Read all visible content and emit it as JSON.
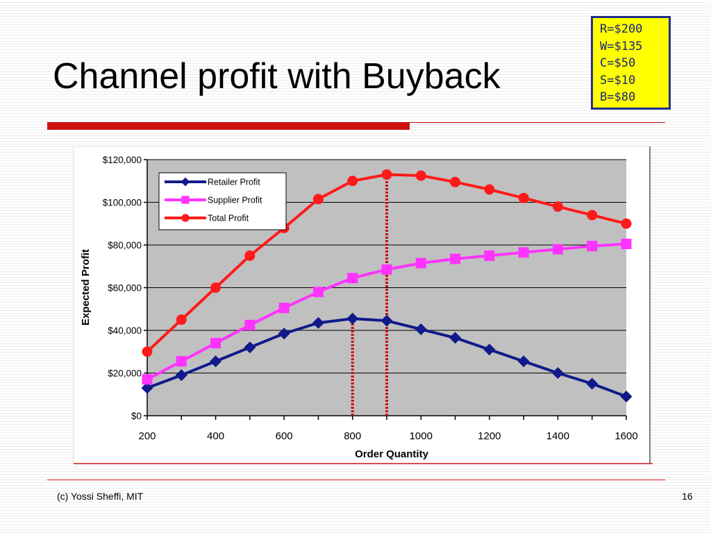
{
  "slide": {
    "title": "Channel profit with Buyback",
    "footer": "(c) Yossi Sheffi, MIT",
    "page_number": "16"
  },
  "parameters": [
    "R=$200",
    "W=$135",
    "C=$50",
    "S=$10",
    "B=$80"
  ],
  "colors": {
    "accent": "#cc1111",
    "param_bg": "#ffff00",
    "param_text": "#1a237e",
    "plot_bg": "#c0c0c0",
    "retailer": "#101a8a",
    "supplier": "#ff33ff",
    "total": "#ff1a1a",
    "marker_line": "#cc1111"
  },
  "chart_data": {
    "type": "line",
    "xlabel": "Order Quantity",
    "ylabel": "Expected Profit",
    "x": [
      200,
      300,
      400,
      500,
      600,
      700,
      800,
      900,
      1000,
      1100,
      1200,
      1300,
      1400,
      1500,
      1600
    ],
    "xticks": [
      200,
      400,
      600,
      800,
      1000,
      1200,
      1400,
      1600
    ],
    "xtick_labels": [
      "200",
      "400",
      "600",
      "800",
      "1000",
      "1200",
      "1400",
      "1600"
    ],
    "xlim": [
      200,
      1600
    ],
    "ylim": [
      0,
      120000
    ],
    "yticks": [
      0,
      20000,
      40000,
      60000,
      80000,
      100000,
      120000
    ],
    "ytick_labels": [
      "$0",
      "$20,000",
      "$40,000",
      "$60,000",
      "$80,000",
      "$100,000",
      "$120,000"
    ],
    "grid": "horizontal",
    "legend_position": "top-left",
    "series": [
      {
        "name": "Retailer Profit",
        "marker": "diamond",
        "color": "#101a8a",
        "values": [
          13000,
          19000,
          25500,
          32000,
          38500,
          43500,
          45500,
          44500,
          40500,
          36500,
          31000,
          25500,
          20000,
          15000,
          9000
        ]
      },
      {
        "name": "Supplier Profit",
        "marker": "square",
        "color": "#ff33ff",
        "values": [
          17000,
          25500,
          34000,
          42500,
          50500,
          58000,
          64500,
          68500,
          71500,
          73500,
          75000,
          76500,
          78000,
          79500,
          80500
        ]
      },
      {
        "name": "Total Profit",
        "marker": "circle",
        "color": "#ff1a1a",
        "values": [
          30000,
          45000,
          60000,
          75000,
          88000,
          101500,
          110000,
          113000,
          112500,
          109500,
          106000,
          102000,
          98000,
          94000,
          90000
        ]
      }
    ],
    "reference_lines": [
      {
        "x": 800,
        "y": 45500
      },
      {
        "x": 900,
        "y": 113000
      }
    ]
  }
}
